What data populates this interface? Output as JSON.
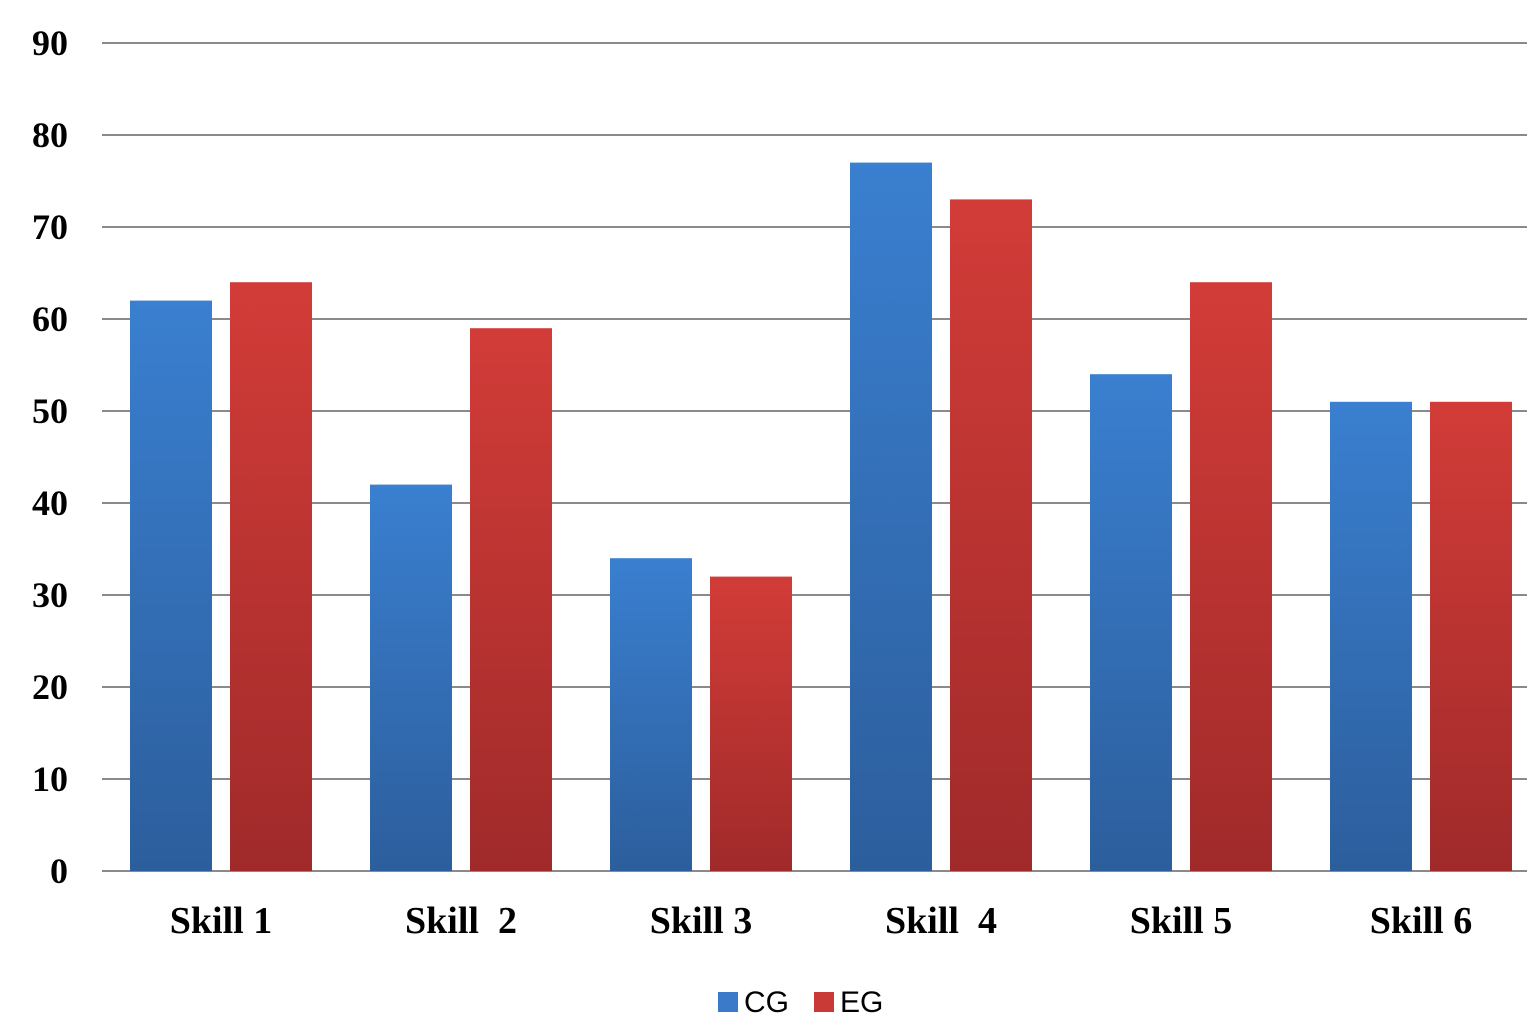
{
  "chart_data": {
    "type": "bar",
    "categories": [
      "Skill 1",
      "Skill  2",
      "Skill 3",
      "Skill  4",
      "Skill 5",
      "Skill 6"
    ],
    "series": [
      {
        "name": "CG",
        "values": [
          62,
          42,
          34,
          77,
          54,
          51
        ],
        "color": "#3a7ac8"
      },
      {
        "name": "EG",
        "values": [
          64,
          59,
          32,
          73,
          64,
          51
        ],
        "color": "#c93a37"
      }
    ],
    "yticks": [
      0,
      10,
      20,
      30,
      40,
      50,
      60,
      70,
      80,
      90
    ],
    "ylim": [
      0,
      90
    ],
    "grid": true,
    "legend_position": "bottom",
    "title": "",
    "xlabel": "",
    "ylabel": ""
  }
}
